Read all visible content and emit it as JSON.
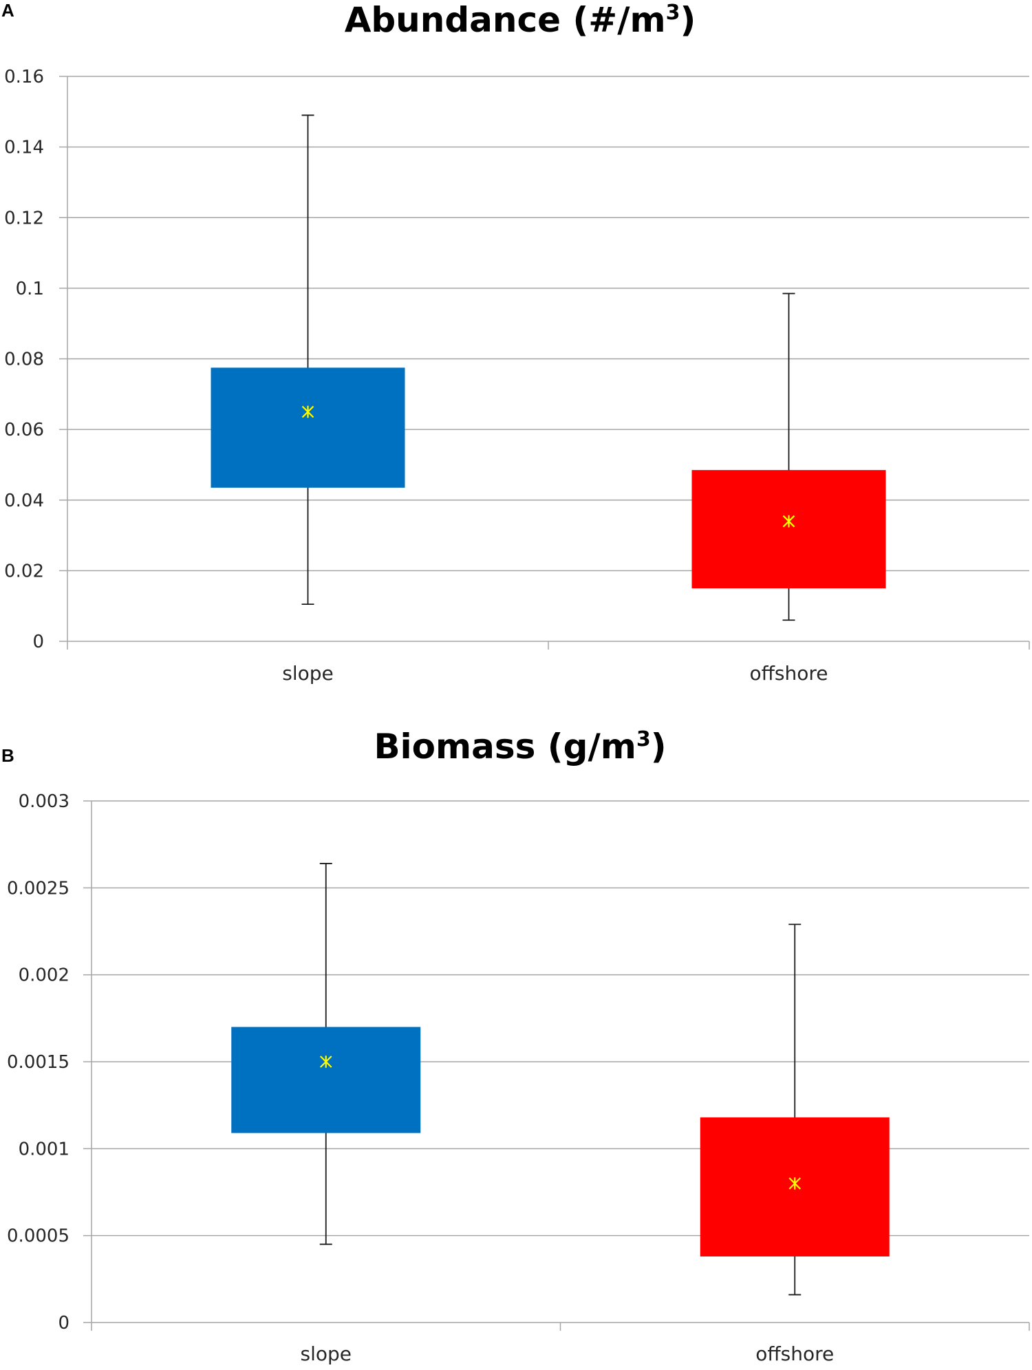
{
  "chart_data": [
    {
      "type": "box",
      "panel_label": "A",
      "title": "Abundance (#/m",
      "title_superscript": "3",
      "title_suffix": ")",
      "xlabel": "",
      "ylabel": "",
      "ylim": [
        0,
        0.16
      ],
      "y_ticks": [
        0,
        0.02,
        0.04,
        0.06,
        0.08,
        0.1,
        0.12,
        0.14,
        0.16
      ],
      "y_tick_labels": [
        "0",
        "0.02",
        "0.04",
        "0.06",
        "0.08",
        "0.1",
        "0.12",
        "0.14",
        "0.16"
      ],
      "grid": true,
      "categories": [
        "slope",
        "offshore"
      ],
      "boxes": [
        {
          "category": "slope",
          "min": 0.0105,
          "q1": 0.0435,
          "mean": 0.065,
          "q3": 0.0775,
          "max": 0.149,
          "color": "#0070C0"
        },
        {
          "category": "offshore",
          "min": 0.006,
          "q1": 0.015,
          "mean": 0.034,
          "q3": 0.0485,
          "max": 0.0985,
          "color": "#FF0000"
        }
      ],
      "mean_marker_color": "#FFFF00"
    },
    {
      "type": "box",
      "panel_label": "B",
      "title": "Biomass (g/m",
      "title_superscript": "3",
      "title_suffix": ")",
      "xlabel": "",
      "ylabel": "",
      "ylim": [
        0,
        0.003
      ],
      "y_ticks": [
        0,
        0.0005,
        0.001,
        0.0015,
        0.002,
        0.0025,
        0.003
      ],
      "y_tick_labels": [
        "0",
        "0.0005",
        "0.001",
        "0.0015",
        "0.002",
        "0.0025",
        "0.003"
      ],
      "grid": true,
      "categories": [
        "slope",
        "offshore"
      ],
      "boxes": [
        {
          "category": "slope",
          "min": 0.00045,
          "q1": 0.00109,
          "mean": 0.0015,
          "q3": 0.0017,
          "max": 0.00264,
          "color": "#0070C0"
        },
        {
          "category": "offshore",
          "min": 0.00016,
          "q1": 0.00038,
          "mean": 0.0008,
          "q3": 0.00118,
          "max": 0.00229,
          "color": "#FF0000"
        }
      ],
      "mean_marker_color": "#FFFF00"
    }
  ]
}
